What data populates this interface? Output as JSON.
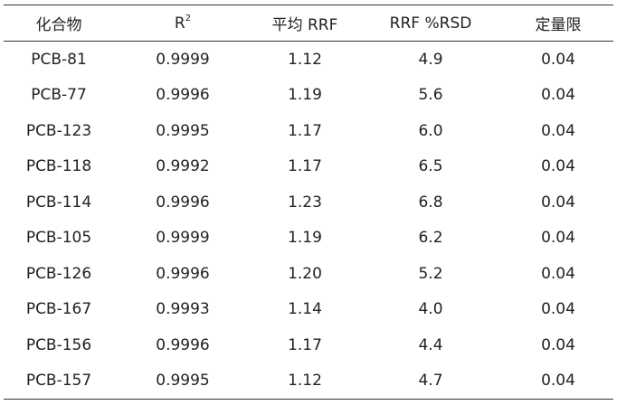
{
  "table": {
    "header": [
      {
        "text": "化合物"
      },
      {
        "text": "R",
        "sup": "2"
      },
      {
        "text": "平均 RRF"
      },
      {
        "text": "RRF %RSD"
      },
      {
        "text": "定量限"
      }
    ],
    "rows": [
      [
        "PCB-81",
        "0.9999",
        "1.12",
        "4.9",
        "0.04"
      ],
      [
        "PCB-77",
        "0.9996",
        "1.19",
        "5.6",
        "0.04"
      ],
      [
        "PCB-123",
        "0.9995",
        "1.17",
        "6.0",
        "0.04"
      ],
      [
        "PCB-118",
        "0.9992",
        "1.17",
        "6.5",
        "0.04"
      ],
      [
        "PCB-114",
        "0.9996",
        "1.23",
        "6.8",
        "0.04"
      ],
      [
        "PCB-105",
        "0.9999",
        "1.19",
        "6.2",
        "0.04"
      ],
      [
        "PCB-126",
        "0.9996",
        "1.20",
        "5.2",
        "0.04"
      ],
      [
        "PCB-167",
        "0.9993",
        "1.14",
        "4.0",
        "0.04"
      ],
      [
        "PCB-156",
        "0.9996",
        "1.17",
        "4.4",
        "0.04"
      ],
      [
        "PCB-157",
        "0.9995",
        "1.12",
        "4.7",
        "0.04"
      ]
    ]
  }
}
